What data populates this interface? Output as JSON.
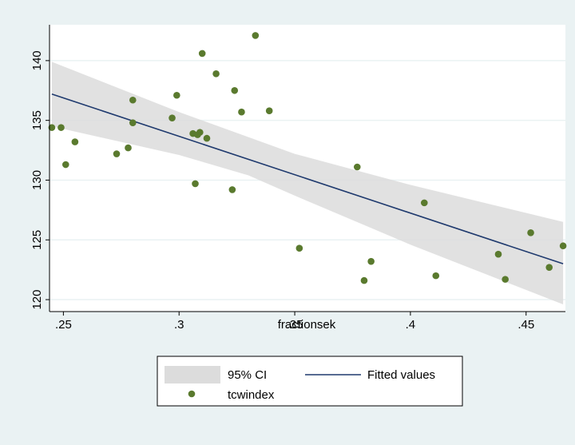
{
  "chart_data": {
    "type": "scatter",
    "xlabel": "fractionsek",
    "ylabel": "",
    "xlim": [
      0.244,
      0.467
    ],
    "ylim": [
      119.0,
      143.0
    ],
    "x_ticks": [
      0.25,
      0.3,
      0.35,
      0.4,
      0.45
    ],
    "x_tick_labels": [
      ".25",
      ".3",
      ".35",
      ".4",
      ".45"
    ],
    "y_ticks": [
      120,
      125,
      130,
      135,
      140
    ],
    "y_tick_labels": [
      "120",
      "125",
      "130",
      "135",
      "140"
    ],
    "grid": "horizontal",
    "legend_position": "bottom",
    "colors": {
      "background": "#eaf2f3",
      "plot_area": "#ffffff",
      "ci_band": "#dcdcdc",
      "fitted_line": "#1f3a6e",
      "points": "#5a7a2e"
    },
    "legend": {
      "ci_label": "95% CI",
      "fitted_label": "Fitted values",
      "points_label": "tcwindex"
    },
    "series": [
      {
        "name": "tcwindex",
        "kind": "scatter",
        "points": [
          [
            0.245,
            134.4
          ],
          [
            0.249,
            134.4
          ],
          [
            0.251,
            131.3
          ],
          [
            0.255,
            133.2
          ],
          [
            0.273,
            132.2
          ],
          [
            0.278,
            132.7
          ],
          [
            0.28,
            136.7
          ],
          [
            0.28,
            134.8
          ],
          [
            0.297,
            135.2
          ],
          [
            0.299,
            137.1
          ],
          [
            0.306,
            133.9
          ],
          [
            0.307,
            129.7
          ],
          [
            0.308,
            133.8
          ],
          [
            0.309,
            134.0
          ],
          [
            0.31,
            140.6
          ],
          [
            0.312,
            133.5
          ],
          [
            0.316,
            138.9
          ],
          [
            0.323,
            129.2
          ],
          [
            0.324,
            137.5
          ],
          [
            0.327,
            135.7
          ],
          [
            0.333,
            142.1
          ],
          [
            0.339,
            135.8
          ],
          [
            0.352,
            124.3
          ],
          [
            0.377,
            131.1
          ],
          [
            0.38,
            121.6
          ],
          [
            0.383,
            123.2
          ],
          [
            0.406,
            128.1
          ],
          [
            0.411,
            122.0
          ],
          [
            0.438,
            123.8
          ],
          [
            0.441,
            121.7
          ],
          [
            0.452,
            125.6
          ],
          [
            0.46,
            122.7
          ],
          [
            0.466,
            124.5
          ]
        ]
      },
      {
        "name": "Fitted values",
        "kind": "line",
        "x": [
          0.245,
          0.466
        ],
        "y": [
          137.2,
          123.0
        ]
      },
      {
        "name": "95% CI",
        "kind": "band",
        "x": [
          0.245,
          0.3,
          0.33,
          0.35,
          0.4,
          0.466
        ],
        "upper": [
          139.9,
          135.7,
          133.6,
          132.2,
          129.6,
          126.5
        ],
        "lower": [
          134.5,
          132.1,
          130.4,
          128.7,
          124.6,
          119.6
        ]
      }
    ]
  }
}
